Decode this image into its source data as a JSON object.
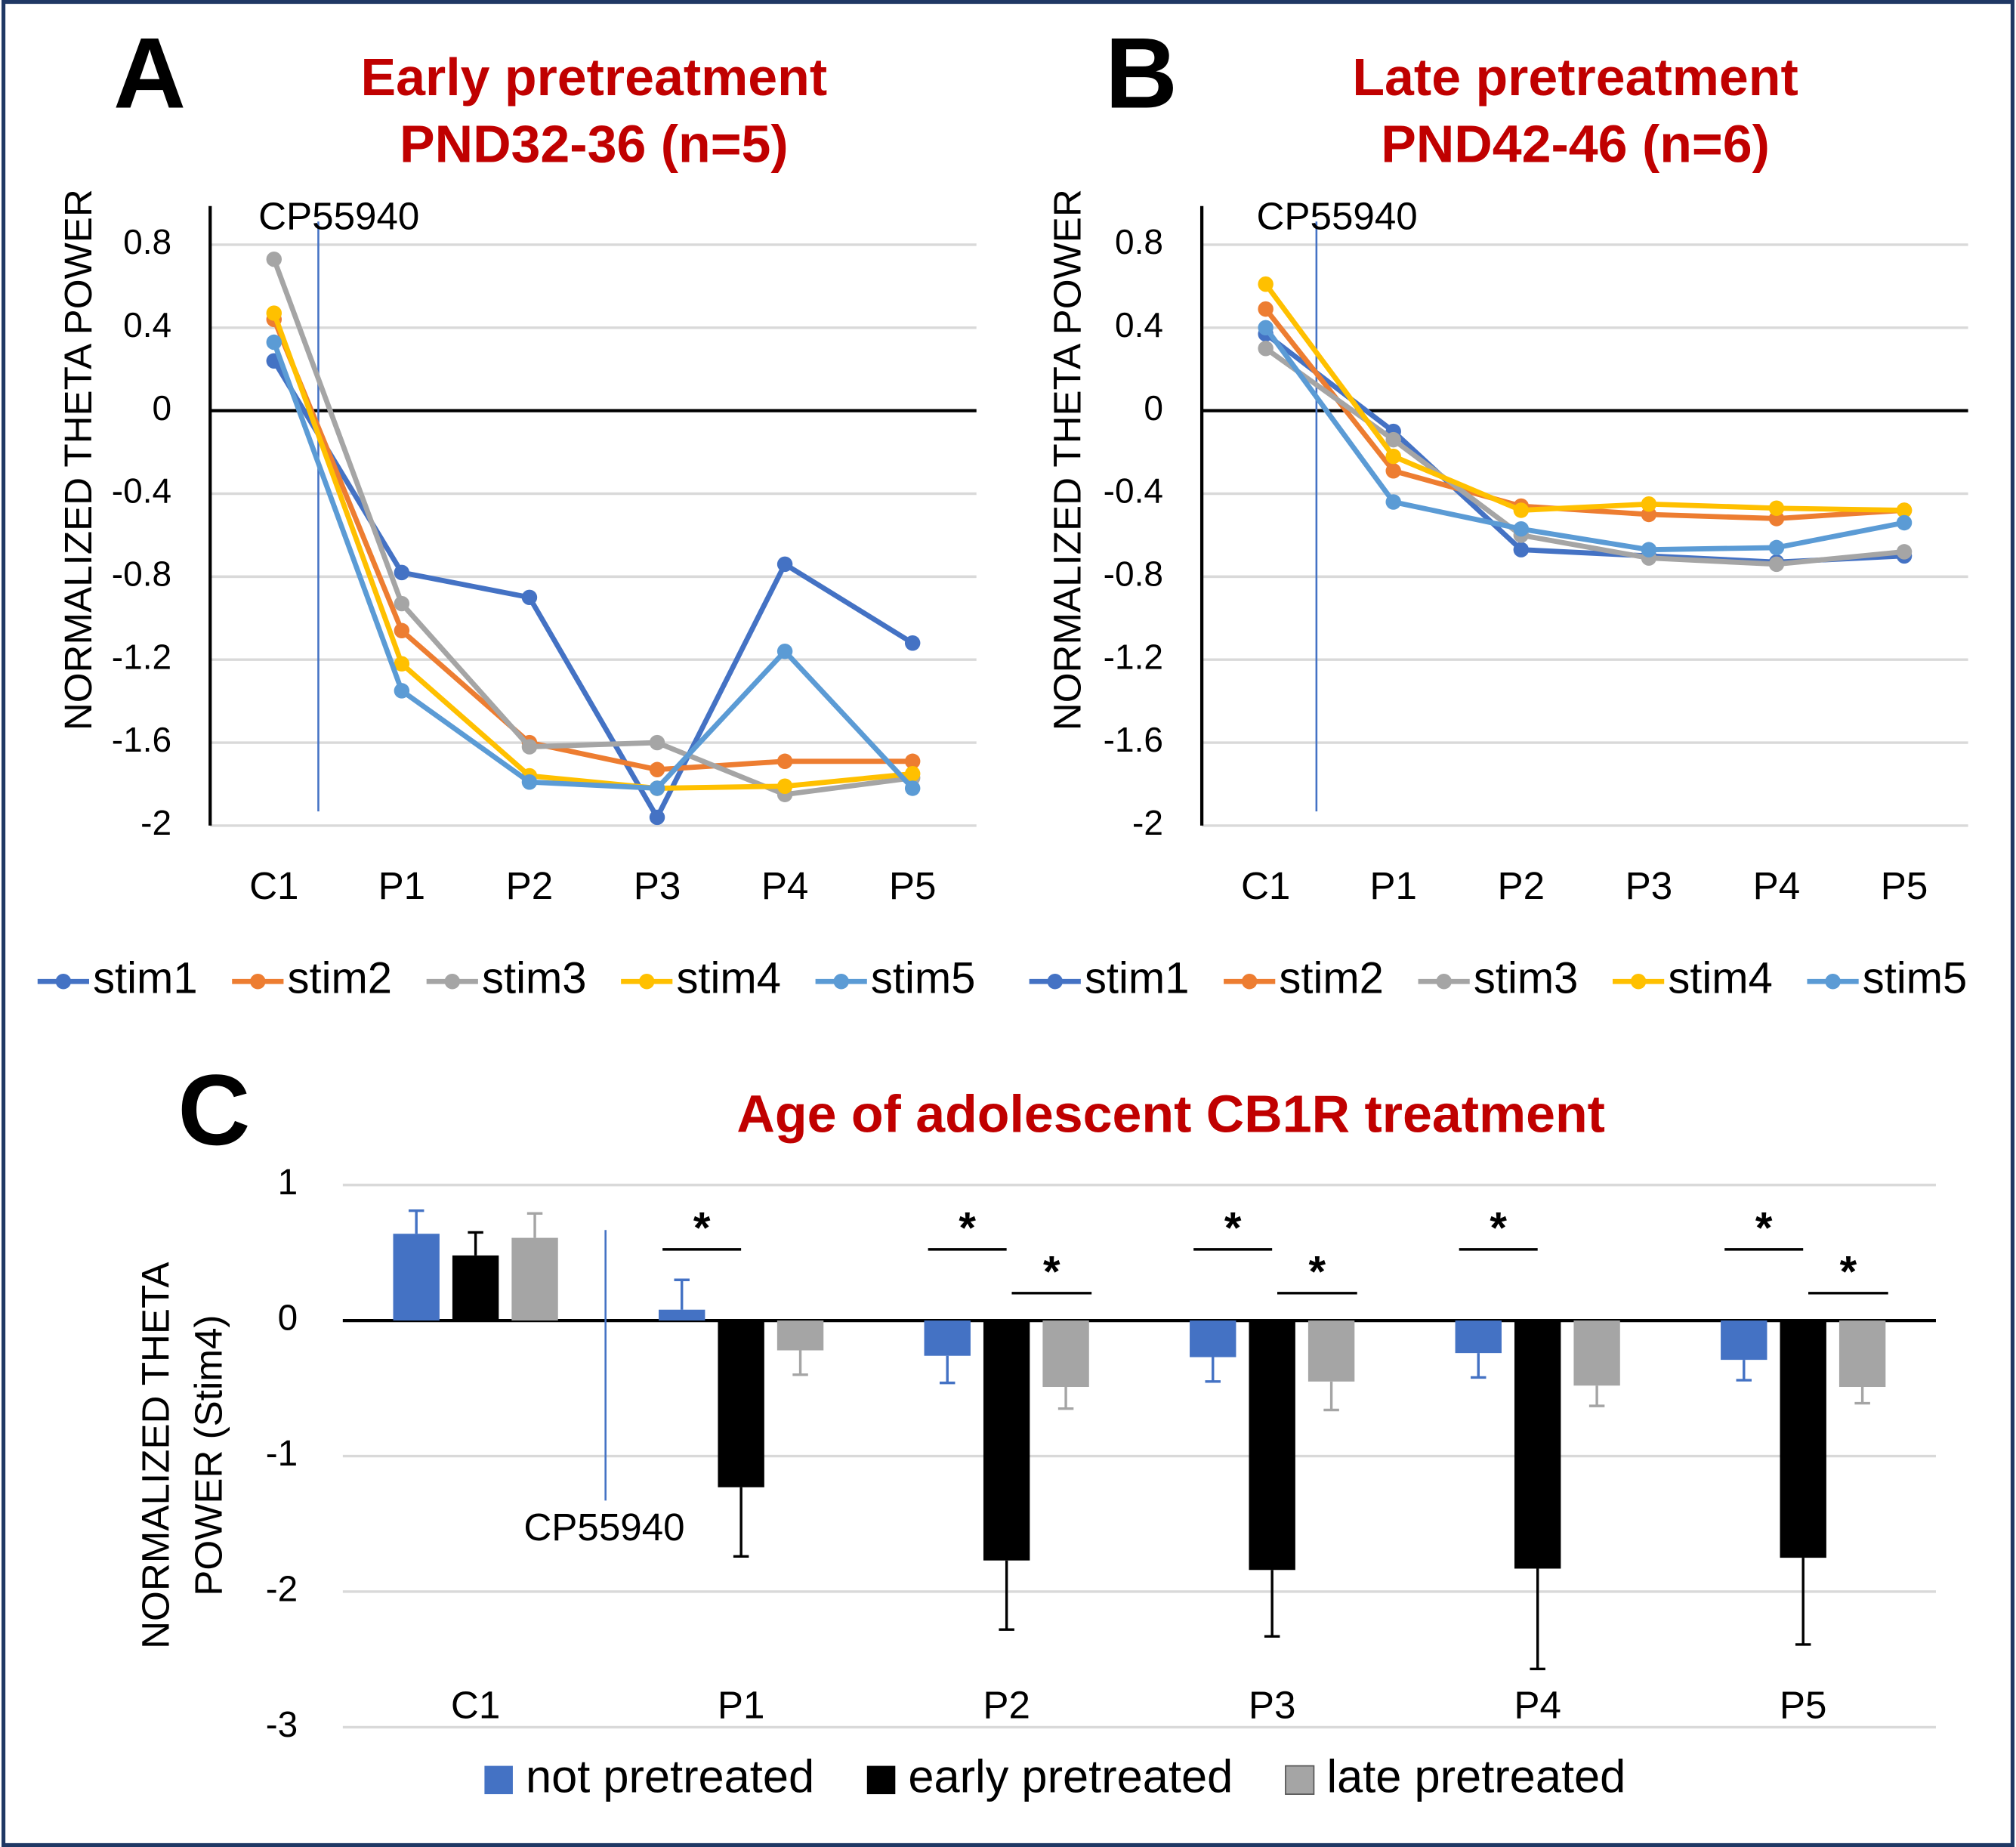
{
  "chart_data": [
    {
      "type": "line",
      "panel_label": "A",
      "title": "Early pretreatment",
      "subtitle": "PND32-36 (n=5)",
      "ylabel": "NORMALIZED THETA POWER",
      "annotation": "CP55940",
      "categories": [
        "C1",
        "P1",
        "P2",
        "P3",
        "P4",
        "P5"
      ],
      "series": [
        {
          "name": "stim1",
          "color": "#4472c4",
          "values": [
            0.24,
            -0.78,
            -0.9,
            -1.96,
            -0.74,
            -1.12
          ]
        },
        {
          "name": "stim2",
          "color": "#ed7d31",
          "values": [
            0.44,
            -1.06,
            -1.6,
            -1.73,
            -1.69,
            -1.69
          ]
        },
        {
          "name": "stim3",
          "color": "#a5a5a5",
          "values": [
            0.73,
            -0.93,
            -1.62,
            -1.6,
            -1.85,
            -1.77
          ]
        },
        {
          "name": "stim4",
          "color": "#ffc000",
          "values": [
            0.47,
            -1.22,
            -1.76,
            -1.82,
            -1.81,
            -1.75
          ]
        },
        {
          "name": "stim5",
          "color": "#5b9bd5",
          "values": [
            0.33,
            -1.35,
            -1.79,
            -1.82,
            -1.16,
            -1.82
          ]
        }
      ],
      "ylim": [
        -2,
        0.8
      ],
      "yticks": [
        0.8,
        0.4,
        0,
        -0.4,
        -0.8,
        -1.2,
        -1.6,
        -2
      ],
      "grid": true
    },
    {
      "type": "line",
      "panel_label": "B",
      "title": "Late pretreatment",
      "subtitle": "PND42-46 (n=6)",
      "ylabel": "NORMALIZED THETA POWER",
      "annotation": "CP55940",
      "categories": [
        "C1",
        "P1",
        "P2",
        "P3",
        "P4",
        "P5"
      ],
      "series": [
        {
          "name": "stim1",
          "color": "#4472c4",
          "values": [
            0.37,
            -0.1,
            -0.67,
            -0.7,
            -0.73,
            -0.7
          ]
        },
        {
          "name": "stim2",
          "color": "#ed7d31",
          "values": [
            0.49,
            -0.29,
            -0.46,
            -0.5,
            -0.52,
            -0.48
          ]
        },
        {
          "name": "stim3",
          "color": "#a5a5a5",
          "values": [
            0.3,
            -0.14,
            -0.6,
            -0.71,
            -0.74,
            -0.68
          ]
        },
        {
          "name": "stim4",
          "color": "#ffc000",
          "values": [
            0.61,
            -0.22,
            -0.48,
            -0.45,
            -0.47,
            -0.48
          ]
        },
        {
          "name": "stim5",
          "color": "#5b9bd5",
          "values": [
            0.4,
            -0.44,
            -0.57,
            -0.67,
            -0.66,
            -0.54
          ]
        }
      ],
      "ylim": [
        -2,
        0.8
      ],
      "yticks": [
        0.8,
        0.4,
        0,
        -0.4,
        -0.8,
        -1.2,
        -1.6,
        -2
      ],
      "grid": true
    },
    {
      "type": "bar",
      "panel_label": "C",
      "title": "Age of adolescent CB1R treatment",
      "ylabel": [
        "NORMALIZED THETA",
        "POWER  (Stim4)"
      ],
      "annotation": "CP55940",
      "categories": [
        "C1",
        "P1",
        "P2",
        "P3",
        "P4",
        "P5"
      ],
      "series": [
        {
          "name": "not pretreated",
          "color": "#4472c4",
          "values": [
            0.64,
            0.08,
            -0.26,
            -0.27,
            -0.24,
            -0.29
          ],
          "errors": [
            0.17,
            0.22,
            0.2,
            0.18,
            0.18,
            0.15
          ]
        },
        {
          "name": "early pretreated",
          "color": "#000000",
          "values": [
            0.48,
            -1.23,
            -1.77,
            -1.84,
            -1.83,
            -1.75
          ],
          "errors": [
            0.17,
            0.51,
            0.51,
            0.49,
            0.74,
            0.64
          ]
        },
        {
          "name": "late pretreated",
          "color": "#a5a5a5",
          "values": [
            0.61,
            -0.22,
            -0.49,
            -0.45,
            -0.48,
            -0.49
          ],
          "errors": [
            0.18,
            0.18,
            0.16,
            0.21,
            0.15,
            0.12
          ]
        }
      ],
      "ylim": [
        -3,
        1
      ],
      "yticks": [
        1,
        0,
        -1,
        -2,
        -3
      ],
      "grid": true,
      "significance_labels": [
        "*",
        "*",
        "*",
        "*",
        "*",
        "*",
        "*",
        "*"
      ]
    }
  ]
}
